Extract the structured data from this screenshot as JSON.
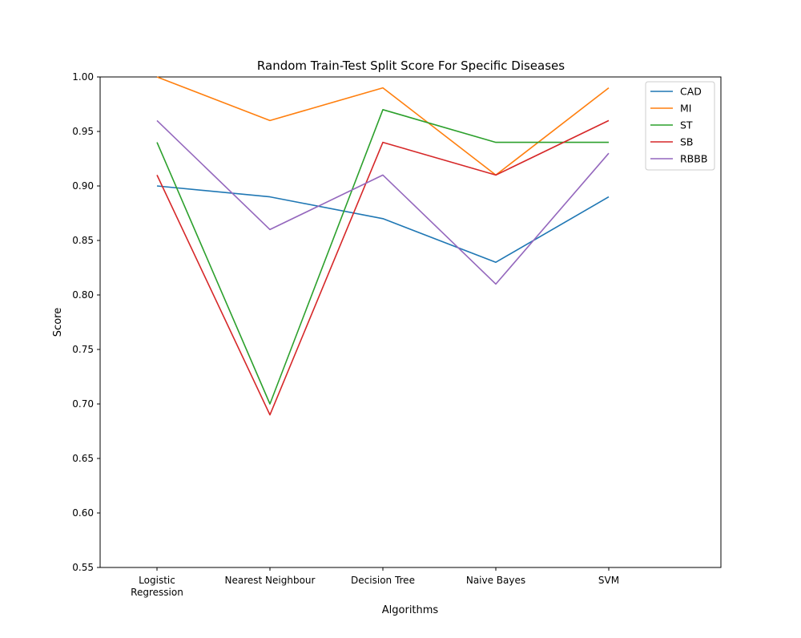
{
  "chart_data": {
    "type": "line",
    "title": "Random Train-Test Split Score For Specific Diseases",
    "xlabel": "Algorithms",
    "ylabel": "Score",
    "categories": [
      "Logistic\nRegression",
      "Nearest Neighbour",
      "Decision Tree",
      "Naive Bayes",
      "SVM"
    ],
    "ylim": [
      0.55,
      1.0
    ],
    "yticks": [
      "0.55",
      "0.60",
      "0.65",
      "0.70",
      "0.75",
      "0.80",
      "0.85",
      "0.90",
      "0.95",
      "1.00"
    ],
    "grid": false,
    "legend_position": "top-right",
    "series": [
      {
        "name": "CAD",
        "color": "#1f77b4",
        "values": [
          0.9,
          0.89,
          0.87,
          0.83,
          0.89
        ]
      },
      {
        "name": "MI",
        "color": "#ff7f0e",
        "values": [
          1.0,
          0.96,
          0.99,
          0.91,
          0.99
        ]
      },
      {
        "name": "ST",
        "color": "#2ca02c",
        "values": [
          0.94,
          0.7,
          0.97,
          0.94,
          0.94
        ]
      },
      {
        "name": "SB",
        "color": "#d62728",
        "values": [
          0.91,
          0.69,
          0.94,
          0.91,
          0.96
        ]
      },
      {
        "name": "RBBB",
        "color": "#9467bd",
        "values": [
          0.96,
          0.86,
          0.91,
          0.81,
          0.93
        ]
      }
    ]
  }
}
